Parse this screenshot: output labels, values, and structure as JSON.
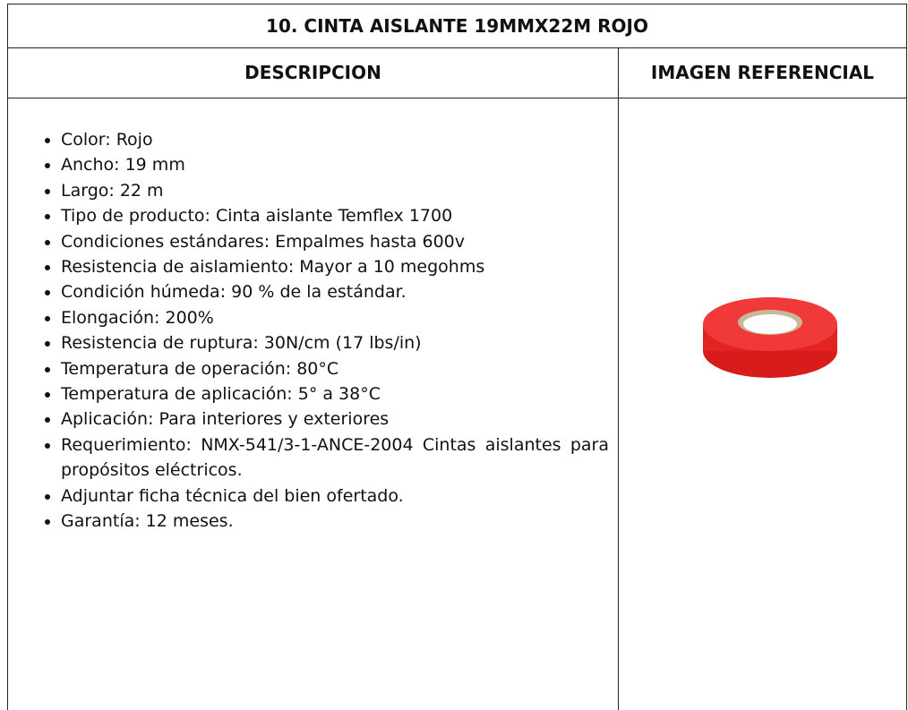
{
  "header": {
    "title": "10. CINTA AISLANTE 19MMX22M ROJO"
  },
  "table": {
    "headers": [
      "DESCRIPCION",
      "IMAGEN REFERENCIAL"
    ],
    "items": [
      "Color: Rojo",
      "Ancho: 19 mm",
      "Largo: 22 m",
      "Tipo de producto: Cinta aislante Temflex 1700",
      "Condiciones estándares: Empalmes hasta 600v",
      "Resistencia de aislamiento: Mayor a 10 megohms",
      "Condición húmeda: 90 % de la estándar.",
      "Elongación: 200%",
      "Resistencia de ruptura: 30N/cm (17 lbs/in)",
      "Temperatura de operación: 80°C",
      "Temperatura de aplicación: 5° a 38°C",
      "Aplicación: Para interiores y exteriores",
      "Requerimiento: NMX-541/3-1-ANCE-2004 Cintas aislantes para propósitos eléctricos.",
      "Adjuntar ficha técnica del bien ofertado.",
      "Garantía: 12 meses."
    ]
  }
}
